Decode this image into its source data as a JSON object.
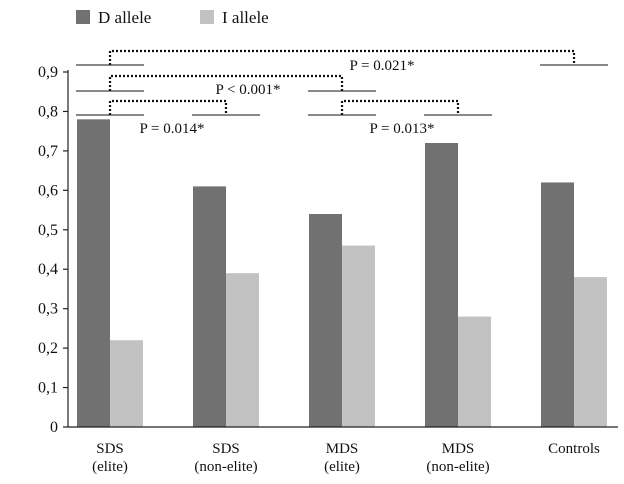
{
  "chart_data": {
    "type": "bar",
    "categories": [
      [
        "SDS",
        "(elite)"
      ],
      [
        "SDS",
        "(non-elite)"
      ],
      [
        "MDS",
        "(elite)"
      ],
      [
        "MDS",
        "(non-elite)"
      ],
      [
        "Controls"
      ]
    ],
    "series": [
      {
        "name": "D allele",
        "color": "#717171",
        "values": [
          0.78,
          0.61,
          0.54,
          0.72,
          0.62
        ]
      },
      {
        "name": "I allele",
        "color": "#c2c2c2",
        "values": [
          0.22,
          0.39,
          0.46,
          0.28,
          0.38
        ]
      }
    ],
    "yticks": [
      "0",
      "0,1",
      "0,2",
      "0,3",
      "0,4",
      "0,5",
      "0,6",
      "0,7",
      "0,8",
      "0,9"
    ],
    "ylim": [
      0,
      0.9
    ],
    "legend_position": "top-left",
    "annotations": [
      {
        "label": "P = 0.014*",
        "from": 0,
        "to": 1
      },
      {
        "label": "P < 0.001*",
        "from": 0,
        "to": 2
      },
      {
        "label": "P = 0.013*",
        "from": 2,
        "to": 3
      },
      {
        "label": "P = 0.021*",
        "from": 0,
        "to": 4
      }
    ]
  }
}
